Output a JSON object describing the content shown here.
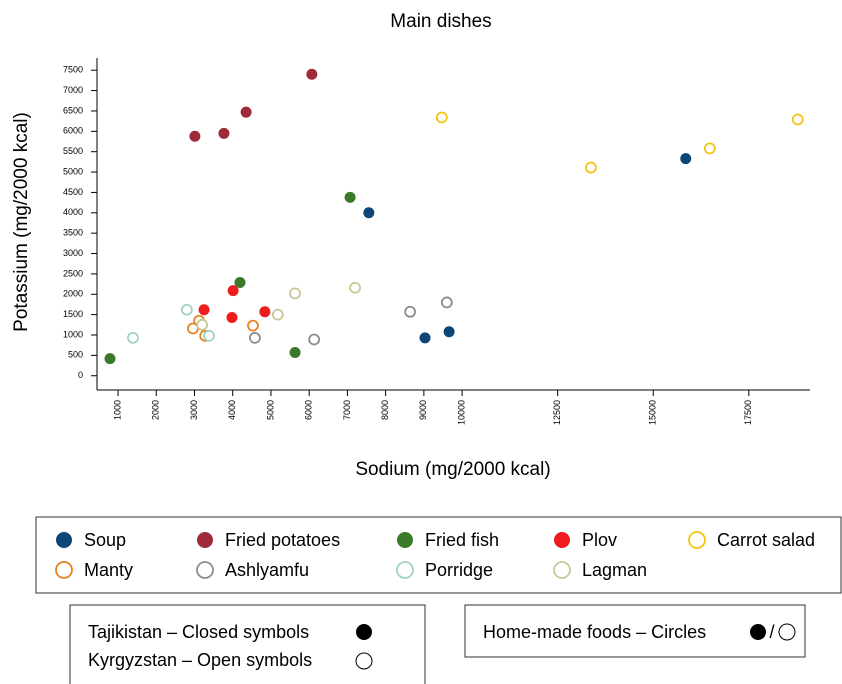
{
  "chart_data": {
    "type": "scatter",
    "title": "Main dishes",
    "x_label": "Sodium (mg/2000 kcal)",
    "y_label": "Potassium (mg/2000 kcal)",
    "xlim": [
      450,
      19100
    ],
    "ylim": [
      -350,
      7800
    ],
    "xticks": [
      1000,
      2000,
      3000,
      4000,
      5000,
      6000,
      7000,
      8000,
      9000,
      10000,
      12500,
      15000,
      17500
    ],
    "yticks": [
      0,
      500,
      1000,
      1500,
      2000,
      2500,
      3000,
      3500,
      4000,
      4500,
      5000,
      5500,
      6000,
      6500,
      7000,
      7500
    ],
    "grid": false,
    "series": [
      {
        "name": "Soup",
        "color": "#0b4677",
        "marker": "closed",
        "x": [
          15850,
          7560,
          9030,
          9660
        ],
        "values": [
          5330,
          4000,
          930,
          1080
        ]
      },
      {
        "name": "Fried potatoes",
        "color": "#9e2a3a",
        "marker": "closed",
        "x": [
          6070,
          4350,
          3770,
          3010
        ],
        "values": [
          7400,
          6470,
          5950,
          5880
        ]
      },
      {
        "name": "Fried fish",
        "color": "#3b7a2a",
        "marker": "closed",
        "x": [
          7070,
          4190,
          790,
          5630
        ],
        "values": [
          4380,
          2290,
          420,
          570
        ]
      },
      {
        "name": "Plov",
        "color": "#ee1c1c",
        "marker": "closed",
        "x": [
          3250,
          4010,
          3980,
          4840
        ],
        "values": [
          1620,
          2090,
          1430,
          1570
        ]
      },
      {
        "name": "Carrot salad",
        "color": "#f2c514",
        "marker": "open",
        "x": [
          9470,
          13370,
          16480,
          18780
        ],
        "values": [
          6340,
          5110,
          5580,
          6290
        ]
      },
      {
        "name": "Manty",
        "color": "#e8821e",
        "marker": "open",
        "x": [
          2960,
          3120,
          3280,
          4530
        ],
        "values": [
          1160,
          1350,
          980,
          1230
        ]
      },
      {
        "name": "Ashlyamfu",
        "color": "#8c8c8c",
        "marker": "open",
        "x": [
          4580,
          6130,
          8640,
          9600
        ],
        "values": [
          930,
          890,
          1570,
          1800
        ]
      },
      {
        "name": "Porridge",
        "color": "#9fd3c0",
        "marker": "open",
        "x": [
          1390,
          2800,
          3380
        ],
        "values": [
          930,
          1620,
          980
        ]
      },
      {
        "name": "Lagman",
        "color": "#c9c79a",
        "marker": "open",
        "x": [
          3200,
          5180,
          5630,
          7200
        ],
        "values": [
          1250,
          1500,
          2020,
          2160
        ]
      }
    ],
    "symbol_notes": {
      "closed": "Tajikistan – Closed symbols",
      "open": "Kyrgyzstan – Open symbols",
      "circles": "Home-made foods – Circles",
      "circles_separator": "/"
    }
  }
}
